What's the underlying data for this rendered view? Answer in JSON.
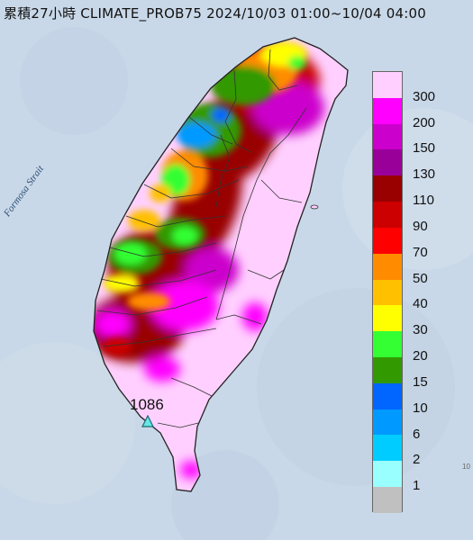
{
  "title": "累積27小時 CLIMATE_PROB75 2024/10/03 01:00~10/04 04:00",
  "sea_label": "Formosa Strait",
  "max_value": "1086",
  "corner_fragment": "10",
  "legend": {
    "colors": [
      "#ffd0ff",
      "#ff00ff",
      "#cc00cc",
      "#990099",
      "#990000",
      "#cc0000",
      "#ff0000",
      "#ff8c00",
      "#ffc000",
      "#ffff00",
      "#33ff33",
      "#339900",
      "#0066ff",
      "#0099ff",
      "#00ccff",
      "#99ffff",
      "#c0c0c0"
    ],
    "labels": [
      "300",
      "200",
      "150",
      "130",
      "110",
      "90",
      "70",
      "50",
      "40",
      "30",
      "20",
      "15",
      "10",
      "6",
      "2",
      "1"
    ]
  },
  "colors": {
    "sea": "#c9d8e8",
    "land_base": "#ffd0ff",
    "county_borders": "#333333"
  }
}
